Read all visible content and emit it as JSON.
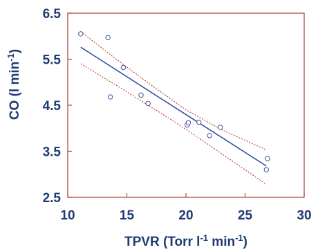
{
  "colors": {
    "axis_text": "#1f3b73",
    "frame": "#b24a4a",
    "points": "#4a4aa8",
    "fit_line": "#3a4fa6",
    "confidence_band": "#b22a2a"
  },
  "chart_data": {
    "type": "scatter",
    "xlabel": {
      "prefix": "TPVR (Torr l",
      "sup1": "-1",
      "middle": " min",
      "sup2": "-1",
      "suffix": ")"
    },
    "ylabel": {
      "prefix": "CO (l min",
      "sup": "-1",
      "suffix": ")"
    },
    "xlim": [
      10,
      30
    ],
    "ylim": [
      2.5,
      6.5
    ],
    "xticks": [
      10,
      15,
      20,
      25,
      30
    ],
    "xtick_labels": [
      "10",
      "15",
      "20",
      "25",
      "30"
    ],
    "yticks": [
      2.5,
      3.5,
      4.5,
      5.5,
      6.5
    ],
    "ytick_labels": [
      "2.5",
      "3.5",
      "4.5",
      "5.5",
      "6.5"
    ],
    "grid": false,
    "points": [
      {
        "x": 11.1,
        "y": 6.05
      },
      {
        "x": 13.4,
        "y": 5.97
      },
      {
        "x": 13.6,
        "y": 4.68
      },
      {
        "x": 14.7,
        "y": 5.32
      },
      {
        "x": 16.2,
        "y": 4.72
      },
      {
        "x": 16.8,
        "y": 4.54
      },
      {
        "x": 20.1,
        "y": 4.07
      },
      {
        "x": 20.2,
        "y": 4.12
      },
      {
        "x": 21.1,
        "y": 4.13
      },
      {
        "x": 22.0,
        "y": 3.84
      },
      {
        "x": 22.9,
        "y": 4.02
      },
      {
        "x": 26.8,
        "y": 3.1
      },
      {
        "x": 26.9,
        "y": 3.34
      }
    ],
    "fit_line": {
      "x": [
        11.1,
        26.8
      ],
      "y": [
        5.76,
        3.18
      ]
    },
    "confidence_upper": {
      "x": [
        11.1,
        14,
        17,
        20,
        23,
        26.8
      ],
      "y": [
        6.1,
        5.52,
        4.95,
        4.4,
        3.97,
        3.53
      ]
    },
    "confidence_lower": {
      "x": [
        11.1,
        14,
        17,
        20,
        23,
        26.8
      ],
      "y": [
        5.4,
        4.95,
        4.47,
        3.98,
        3.45,
        2.78
      ]
    }
  }
}
